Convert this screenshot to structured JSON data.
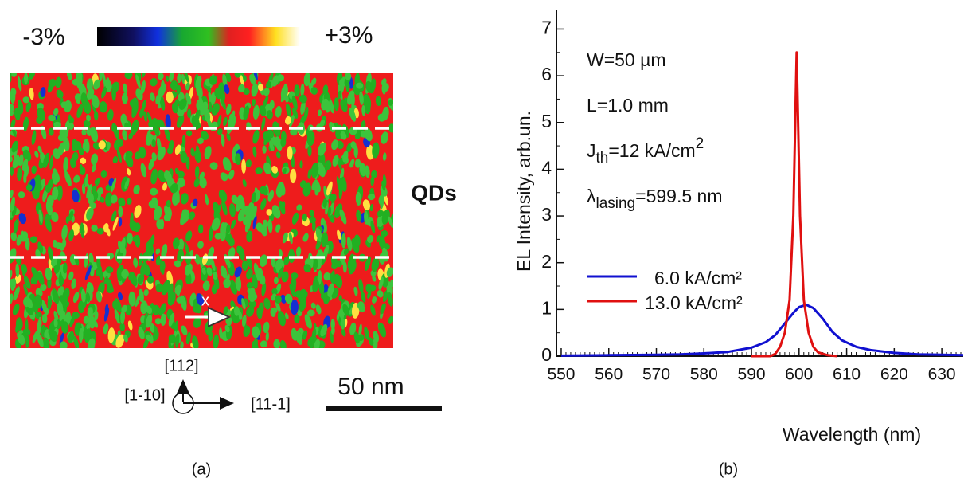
{
  "panel_a": {
    "scale_min": "-3%",
    "scale_max": "+3%",
    "region_label": "QDs",
    "direction_label": "x",
    "axis_up": "[112]",
    "axis_into": "[1-10]",
    "axis_right": "[11-1]",
    "scale_bar": "50 nm",
    "caption": "(a)"
  },
  "chart_data": {
    "type": "line",
    "caption": "(b)",
    "x_label": "Wavelength (nm)",
    "y_label": "EL Intensity, arb.un.",
    "annotations": [
      [
        {
          "text": "W=50 µm"
        }
      ],
      [
        {
          "text": "L=1.0 mm"
        }
      ],
      [
        {
          "text": "J"
        },
        {
          "text": "th",
          "sub": true
        },
        {
          "text": "=12 kA/cm"
        },
        {
          "text": "2",
          "sup": true
        }
      ],
      [
        {
          "text": "λ"
        },
        {
          "text": "lasing",
          "sub": true
        },
        {
          "text": "=599.5 nm"
        }
      ]
    ],
    "legend": "left",
    "xlim": [
      549,
      634.5
    ],
    "ylim": [
      0,
      7.4
    ],
    "xticks": [
      550,
      560,
      570,
      580,
      590,
      600,
      610,
      620,
      630
    ],
    "yticks": [
      0,
      1,
      2,
      3,
      4,
      5,
      6,
      7
    ],
    "x_minor_step": 1,
    "y_minor_step": 0.5,
    "series": [
      {
        "name": "6.0 kA/cm²",
        "color": "#1010d0",
        "x": [
          550,
          560,
          570,
          575,
          580,
          585,
          590,
          593,
          595,
          597,
          599,
          600,
          601.5,
          603,
          605,
          607,
          609,
          612,
          615,
          620,
          625,
          630,
          634.5
        ],
        "values": [
          0.01,
          0.02,
          0.03,
          0.04,
          0.06,
          0.09,
          0.18,
          0.3,
          0.45,
          0.7,
          0.95,
          1.05,
          1.1,
          1.03,
          0.8,
          0.52,
          0.34,
          0.2,
          0.13,
          0.07,
          0.04,
          0.03,
          0.02
        ]
      },
      {
        "name": "13.0 kA/cm²",
        "color": "#e01010",
        "x": [
          590,
          594,
          595,
          596,
          597,
          598,
          598.8,
          599.3,
          599.5,
          599.7,
          600.2,
          601,
          602,
          603,
          604,
          606,
          608
        ],
        "values": [
          0,
          0,
          0.05,
          0.2,
          0.5,
          1.2,
          3.0,
          5.5,
          6.5,
          5.5,
          3.0,
          1.2,
          0.5,
          0.2,
          0.08,
          0.02,
          0
        ]
      }
    ]
  }
}
